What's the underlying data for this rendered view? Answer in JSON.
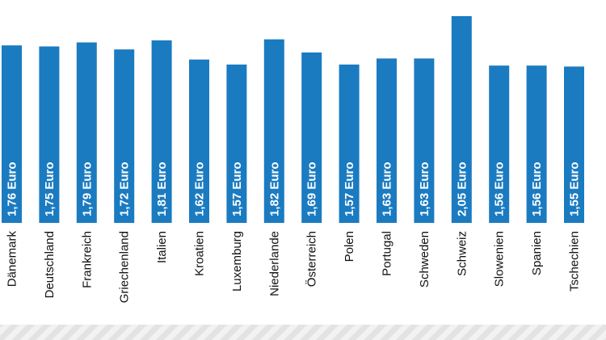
{
  "chart_data": {
    "type": "bar",
    "categories": [
      "Dänemark",
      "Deutschland",
      "Frankreich",
      "Griechenland",
      "Italien",
      "Kroatien",
      "Luxemburg",
      "Niederlande",
      "Österreich",
      "Polen",
      "Portugal",
      "Schweden",
      "Schweiz",
      "Slowenien",
      "Spanien",
      "Tschechien"
    ],
    "values": [
      1.76,
      1.75,
      1.79,
      1.72,
      1.81,
      1.62,
      1.57,
      1.82,
      1.69,
      1.57,
      1.63,
      1.63,
      2.05,
      1.56,
      1.56,
      1.55
    ],
    "labels": [
      "1,76 Euro",
      "1,75 Euro",
      "1,79 Euro",
      "1,72 Euro",
      "1,81 Euro",
      "1,62 Euro",
      "1,57 Euro",
      "1,82 Euro",
      "1,69 Euro",
      "1,57 Euro",
      "1,63 Euro",
      "1,63 Euro",
      "2,05 Euro",
      "1,56 Euro",
      "1,56 Euro",
      "1,55 Euro"
    ],
    "unit": "Euro",
    "title": "",
    "xlabel": "",
    "ylabel": "",
    "ylim": [
      0,
      2.05
    ],
    "grid": false,
    "bar_color": "#1b7bc1",
    "footer_stripe_colors": [
      "#e3e3e3",
      "#f2f2f2"
    ]
  }
}
